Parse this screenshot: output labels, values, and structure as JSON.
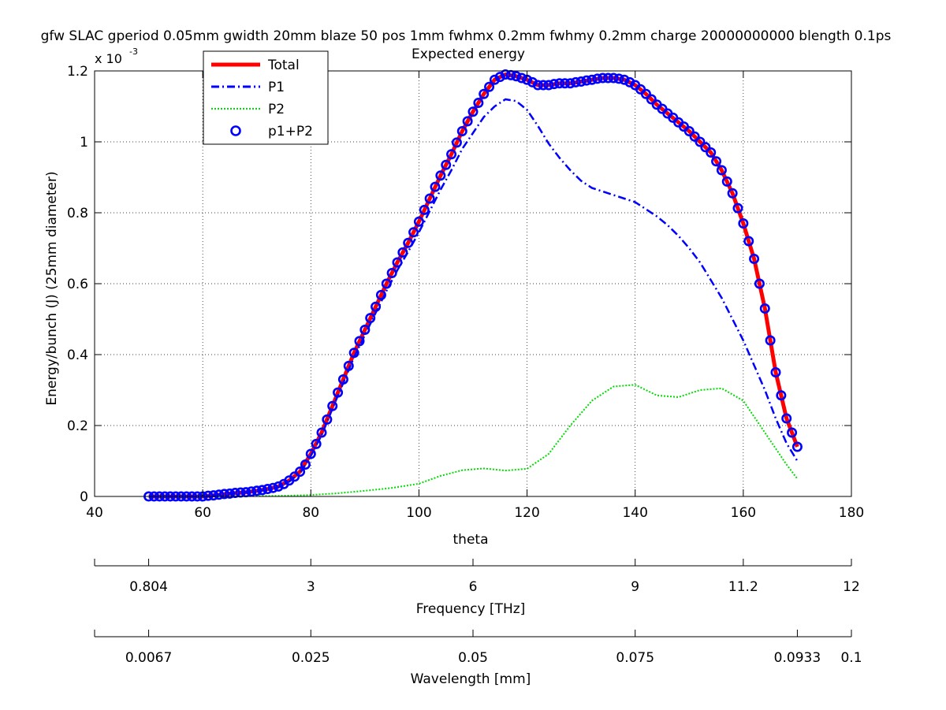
{
  "chart_data": {
    "type": "line",
    "title": "gfw SLAC gperiod 0.05mm gwidth 20mm blaze 50 pos 1mm fwhmx 0.2mm fwhmy 0.2mm charge 20000000000 blength 0.1ps",
    "subtitle": "Expected energy",
    "xlabel": "theta",
    "ylabel": "Energy/bunch (J) (25mm diameter)",
    "y_multiplier_label": "x 10",
    "y_multiplier_exponent": "-3",
    "xlim": [
      40,
      180
    ],
    "ylim": [
      0,
      1.2
    ],
    "y_scale_factor": 0.001,
    "grid": true,
    "grid_style": "dotted",
    "legend_placement": "top-left",
    "x_ticks": [
      40,
      60,
      80,
      100,
      120,
      140,
      160,
      180
    ],
    "x_tick_labels": [
      "40",
      "60",
      "80",
      "100",
      "120",
      "140",
      "160",
      "180"
    ],
    "y_ticks": [
      0,
      0.2,
      0.4,
      0.6,
      0.8,
      1,
      1.2
    ],
    "y_tick_labels": [
      "0",
      "0.2",
      "0.4",
      "0.6",
      "0.8",
      "1",
      "1.2"
    ],
    "series": [
      {
        "name": "Total",
        "color": "#ff0000",
        "style": "solid-thick",
        "x": [
          50,
          55,
          60,
          62,
          65,
          68,
          70,
          72,
          74,
          76,
          78,
          80,
          82,
          84,
          86,
          88,
          90,
          92,
          94,
          96,
          98,
          100,
          102,
          104,
          106,
          108,
          110,
          112,
          114,
          116,
          118,
          120,
          122,
          124,
          126,
          128,
          130,
          132,
          134,
          136,
          138,
          140,
          142,
          144,
          146,
          148,
          150,
          152,
          154,
          156,
          158,
          160,
          162,
          164,
          166,
          168,
          170
        ],
        "values": [
          0.0,
          0.0,
          0.0,
          0.003,
          0.008,
          0.012,
          0.016,
          0.021,
          0.028,
          0.045,
          0.07,
          0.12,
          0.18,
          0.255,
          0.33,
          0.405,
          0.47,
          0.535,
          0.6,
          0.66,
          0.715,
          0.775,
          0.84,
          0.905,
          0.965,
          1.03,
          1.085,
          1.135,
          1.175,
          1.19,
          1.185,
          1.175,
          1.16,
          1.16,
          1.165,
          1.165,
          1.17,
          1.175,
          1.18,
          1.18,
          1.175,
          1.16,
          1.135,
          1.105,
          1.08,
          1.055,
          1.03,
          1.0,
          0.97,
          0.92,
          0.855,
          0.77,
          0.67,
          0.53,
          0.35,
          0.22,
          0.14
        ]
      },
      {
        "name": "P1",
        "color": "#0000ff",
        "style": "dash-dot",
        "x": [
          50,
          55,
          60,
          62,
          65,
          68,
          70,
          72,
          74,
          76,
          78,
          80,
          82,
          84,
          86,
          88,
          90,
          92,
          94,
          96,
          98,
          100,
          102,
          104,
          106,
          108,
          110,
          112,
          114,
          116,
          118,
          120,
          122,
          124,
          126,
          128,
          130,
          132,
          134,
          136,
          138,
          140,
          142,
          144,
          146,
          148,
          150,
          152,
          154,
          156,
          158,
          160,
          162,
          164,
          166,
          168,
          170
        ],
        "values": [
          0.0,
          0.0,
          0.0,
          0.003,
          0.008,
          0.012,
          0.015,
          0.019,
          0.026,
          0.042,
          0.066,
          0.115,
          0.173,
          0.248,
          0.32,
          0.393,
          0.455,
          0.518,
          0.58,
          0.638,
          0.69,
          0.745,
          0.805,
          0.865,
          0.92,
          0.98,
          1.025,
          1.07,
          1.1,
          1.12,
          1.115,
          1.09,
          1.045,
          0.995,
          0.955,
          0.92,
          0.89,
          0.87,
          0.86,
          0.85,
          0.84,
          0.83,
          0.81,
          0.79,
          0.765,
          0.735,
          0.7,
          0.66,
          0.61,
          0.56,
          0.5,
          0.44,
          0.37,
          0.3,
          0.22,
          0.15,
          0.1
        ]
      },
      {
        "name": "P2",
        "color": "#00dd00",
        "style": "dotted",
        "x": [
          50,
          60,
          70,
          75,
          80,
          85,
          90,
          95,
          100,
          104,
          108,
          112,
          116,
          120,
          124,
          128,
          132,
          136,
          140,
          144,
          148,
          152,
          156,
          160,
          164,
          168,
          170
        ],
        "values": [
          0.0,
          0.0,
          0.001,
          0.002,
          0.004,
          0.009,
          0.016,
          0.024,
          0.036,
          0.058,
          0.074,
          0.079,
          0.073,
          0.078,
          0.12,
          0.2,
          0.27,
          0.31,
          0.315,
          0.285,
          0.28,
          0.3,
          0.305,
          0.27,
          0.18,
          0.09,
          0.05
        ]
      },
      {
        "name": "p1+P2",
        "color": "#0000ff",
        "style": "circle-markers",
        "x": [
          50,
          51,
          52,
          53,
          54,
          55,
          56,
          57,
          58,
          59,
          60,
          61,
          62,
          63,
          64,
          65,
          66,
          67,
          68,
          69,
          70,
          71,
          72,
          73,
          74,
          75,
          76,
          77,
          78,
          79,
          80,
          81,
          82,
          83,
          84,
          85,
          86,
          87,
          88,
          89,
          90,
          91,
          92,
          93,
          94,
          95,
          96,
          97,
          98,
          99,
          100,
          101,
          102,
          103,
          104,
          105,
          106,
          107,
          108,
          109,
          110,
          111,
          112,
          113,
          114,
          115,
          116,
          117,
          118,
          119,
          120,
          121,
          122,
          123,
          124,
          125,
          126,
          127,
          128,
          129,
          130,
          131,
          132,
          133,
          134,
          135,
          136,
          137,
          138,
          139,
          140,
          141,
          142,
          143,
          144,
          145,
          146,
          147,
          148,
          149,
          150,
          151,
          152,
          153,
          154,
          155,
          156,
          157,
          158,
          159,
          160,
          161,
          162,
          163,
          164,
          165,
          166,
          167,
          168,
          169,
          170
        ],
        "values": [
          0.0,
          0.0,
          0.0,
          0.0,
          0.0,
          0.0,
          0.0,
          0.0,
          0.0,
          0.0,
          0.0,
          0.002,
          0.003,
          0.005,
          0.007,
          0.008,
          0.01,
          0.011,
          0.012,
          0.014,
          0.016,
          0.018,
          0.021,
          0.024,
          0.028,
          0.035,
          0.045,
          0.056,
          0.07,
          0.09,
          0.12,
          0.148,
          0.18,
          0.217,
          0.255,
          0.293,
          0.33,
          0.368,
          0.405,
          0.438,
          0.47,
          0.503,
          0.535,
          0.568,
          0.6,
          0.63,
          0.66,
          0.688,
          0.715,
          0.745,
          0.775,
          0.808,
          0.84,
          0.873,
          0.905,
          0.935,
          0.965,
          0.998,
          1.03,
          1.058,
          1.085,
          1.11,
          1.135,
          1.155,
          1.175,
          1.183,
          1.19,
          1.188,
          1.185,
          1.18,
          1.175,
          1.168,
          1.16,
          1.16,
          1.16,
          1.163,
          1.165,
          1.165,
          1.165,
          1.168,
          1.17,
          1.173,
          1.175,
          1.178,
          1.18,
          1.18,
          1.18,
          1.178,
          1.175,
          1.168,
          1.16,
          1.148,
          1.135,
          1.12,
          1.105,
          1.093,
          1.08,
          1.068,
          1.055,
          1.043,
          1.03,
          1.015,
          1.0,
          0.985,
          0.97,
          0.945,
          0.92,
          0.888,
          0.855,
          0.813,
          0.77,
          0.72,
          0.67,
          0.6,
          0.53,
          0.44,
          0.35,
          0.285,
          0.22,
          0.18,
          0.14
        ]
      }
    ],
    "secondary_axes": [
      {
        "label": "Frequency [THz]",
        "tick_positions_theta": [
          40,
          50,
          80,
          110,
          140,
          160,
          180
        ],
        "tick_labels": [
          "",
          "0.804",
          "3",
          "6",
          "9",
          "11.2",
          "12"
        ]
      },
      {
        "label": "Wavelength [mm]",
        "tick_positions_theta": [
          40,
          50,
          80,
          110,
          140,
          170,
          180
        ],
        "tick_labels": [
          "",
          "0.0067",
          "0.025",
          "0.05",
          "0.075",
          "0.0933",
          "0.1"
        ]
      }
    ]
  }
}
